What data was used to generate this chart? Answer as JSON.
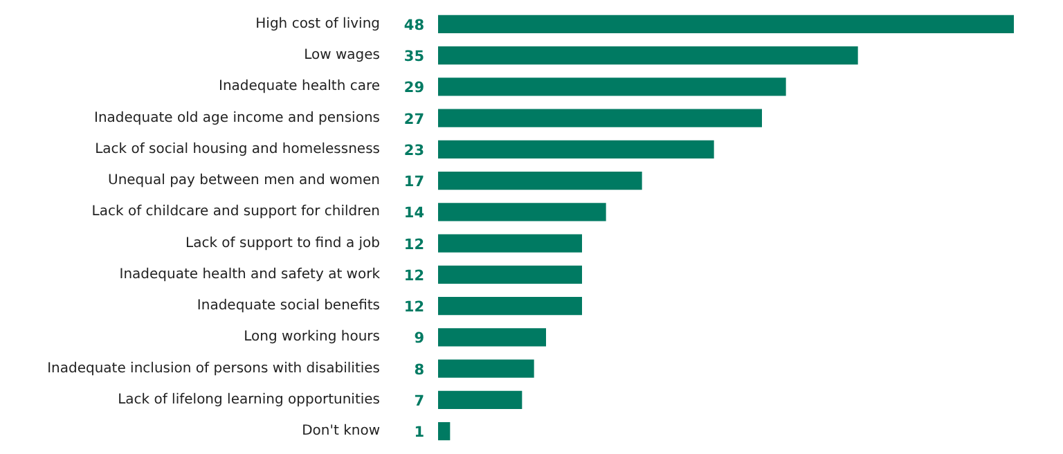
{
  "chart_data": {
    "type": "bar",
    "orientation": "horizontal",
    "categories": [
      "High cost of living",
      "Low wages",
      "Inadequate health care",
      "Inadequate old age income and pensions",
      "Lack of social housing and homelessness",
      "Unequal pay between men and women",
      "Lack of childcare and support for children",
      "Lack of support to find a job",
      "Inadequate health and safety at work",
      "Inadequate social benefits",
      "Long working hours",
      "Inadequate inclusion of persons with disabilities",
      "Lack of lifelong learning opportunities",
      "Don't know"
    ],
    "values": [
      48,
      35,
      29,
      27,
      23,
      17,
      14,
      12,
      12,
      12,
      9,
      8,
      7,
      1
    ],
    "color": "#007a62",
    "data_labels": true,
    "grid": false
  }
}
